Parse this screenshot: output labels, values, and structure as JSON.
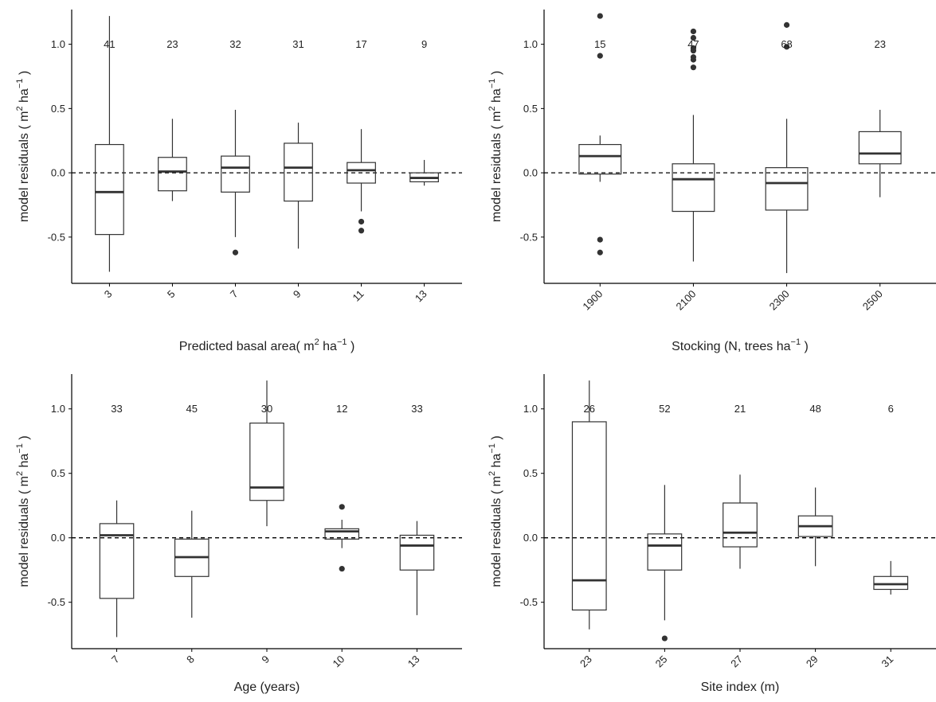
{
  "chart_data": [
    {
      "type": "box",
      "xlabel": "Predicted basal area",
      "xunit": {
        "pre": "( m",
        "sup1": "2",
        "mid": " ha",
        "sup2": "−1",
        "post": " )"
      },
      "ylabel_pre": "model residuals ( m",
      "ylabel_sup1": "2",
      "ylabel_mid": " ha",
      "ylabel_sup2": "−1",
      "ylabel_post": " )",
      "yticks": [
        "-0.5",
        "0.0",
        "0.5",
        "1.0"
      ],
      "ylim": [
        -0.86,
        1.27
      ],
      "categories": [
        "3",
        "5",
        "7",
        "9",
        "11",
        "13"
      ],
      "counts": [
        "41",
        "23",
        "32",
        "31",
        "17",
        "9"
      ],
      "boxes": [
        {
          "q1": -0.48,
          "median": -0.15,
          "q3": 0.22,
          "whisker_low": -0.77,
          "whisker_high": 1.22,
          "outliers": []
        },
        {
          "q1": -0.14,
          "median": 0.01,
          "q3": 0.12,
          "whisker_low": -0.22,
          "whisker_high": 0.42,
          "outliers": []
        },
        {
          "q1": -0.15,
          "median": 0.04,
          "q3": 0.13,
          "whisker_low": -0.5,
          "whisker_high": 0.49,
          "outliers": [
            -0.62
          ]
        },
        {
          "q1": -0.22,
          "median": 0.04,
          "q3": 0.23,
          "whisker_low": -0.59,
          "whisker_high": 0.39,
          "outliers": []
        },
        {
          "q1": -0.08,
          "median": 0.02,
          "q3": 0.08,
          "whisker_low": -0.3,
          "whisker_high": 0.34,
          "outliers": [
            -0.38,
            -0.45
          ]
        },
        {
          "q1": -0.07,
          "median": -0.04,
          "q3": 0.0,
          "whisker_low": -0.1,
          "whisker_high": 0.1,
          "outliers": []
        }
      ],
      "reference_line": 0.0,
      "x_tick_rotation": -45
    },
    {
      "type": "box",
      "xlabel": "Stocking (N, trees ha",
      "xunit": {
        "pre": "",
        "sup1": "",
        "mid": "",
        "sup2": "−1",
        "post": " )"
      },
      "ylabel_pre": "model residuals ( m",
      "ylabel_sup1": "2",
      "ylabel_mid": " ha",
      "ylabel_sup2": "−1",
      "ylabel_post": " )",
      "yticks": [
        "-0.5",
        "0.0",
        "0.5",
        "1.0"
      ],
      "ylim": [
        -0.86,
        1.27
      ],
      "categories": [
        "1900",
        "2100",
        "2300",
        "2500"
      ],
      "counts": [
        "15",
        "47",
        "68",
        "23"
      ],
      "boxes": [
        {
          "q1": -0.01,
          "median": 0.13,
          "q3": 0.22,
          "whisker_low": -0.07,
          "whisker_high": 0.29,
          "outliers": [
            1.22,
            0.91,
            -0.52,
            -0.62
          ]
        },
        {
          "q1": -0.3,
          "median": -0.05,
          "q3": 0.07,
          "whisker_low": -0.69,
          "whisker_high": 0.45,
          "outliers": [
            1.1,
            1.05,
            0.97,
            0.95,
            0.9,
            0.88,
            0.82
          ]
        },
        {
          "q1": -0.29,
          "median": -0.08,
          "q3": 0.04,
          "whisker_low": -0.78,
          "whisker_high": 0.42,
          "outliers": [
            1.15,
            0.98
          ]
        },
        {
          "q1": 0.07,
          "median": 0.15,
          "q3": 0.32,
          "whisker_low": -0.19,
          "whisker_high": 0.49,
          "outliers": []
        }
      ],
      "reference_line": 0.0,
      "x_tick_rotation": -45
    },
    {
      "type": "box",
      "xlabel": "Age (years)",
      "xunit": {
        "pre": "",
        "sup1": "",
        "mid": "",
        "sup2": "",
        "post": ""
      },
      "ylabel_pre": "model residuals ( m",
      "ylabel_sup1": "2",
      "ylabel_mid": " ha",
      "ylabel_sup2": "−1",
      "ylabel_post": " )",
      "yticks": [
        "-0.5",
        "0.0",
        "0.5",
        "1.0"
      ],
      "ylim": [
        -0.86,
        1.27
      ],
      "categories": [
        "7",
        "8",
        "9",
        "10",
        "13"
      ],
      "counts": [
        "33",
        "45",
        "30",
        "12",
        "33"
      ],
      "boxes": [
        {
          "q1": -0.47,
          "median": 0.02,
          "q3": 0.11,
          "whisker_low": -0.77,
          "whisker_high": 0.29,
          "outliers": []
        },
        {
          "q1": -0.3,
          "median": -0.15,
          "q3": -0.01,
          "whisker_low": -0.62,
          "whisker_high": 0.21,
          "outliers": []
        },
        {
          "q1": 0.29,
          "median": 0.39,
          "q3": 0.89,
          "whisker_low": 0.09,
          "whisker_high": 1.22,
          "outliers": []
        },
        {
          "q1": -0.01,
          "median": 0.05,
          "q3": 0.07,
          "whisker_low": -0.08,
          "whisker_high": 0.14,
          "outliers": [
            0.24,
            -0.24
          ]
        },
        {
          "q1": -0.25,
          "median": -0.06,
          "q3": 0.02,
          "whisker_low": -0.6,
          "whisker_high": 0.13,
          "outliers": []
        }
      ],
      "reference_line": 0.0,
      "x_tick_rotation": -45
    },
    {
      "type": "box",
      "xlabel": "Site index (m)",
      "xunit": {
        "pre": "",
        "sup1": "",
        "mid": "",
        "sup2": "",
        "post": ""
      },
      "ylabel_pre": "model residuals ( m",
      "ylabel_sup1": "2",
      "ylabel_mid": " ha",
      "ylabel_sup2": "−1",
      "ylabel_post": " )",
      "yticks": [
        "-0.5",
        "0.0",
        "0.5",
        "1.0"
      ],
      "ylim": [
        -0.86,
        1.27
      ],
      "categories": [
        "23",
        "25",
        "27",
        "29",
        "31"
      ],
      "counts": [
        "26",
        "52",
        "21",
        "48",
        "6"
      ],
      "boxes": [
        {
          "q1": -0.56,
          "median": -0.33,
          "q3": 0.9,
          "whisker_low": -0.71,
          "whisker_high": 1.22,
          "outliers": []
        },
        {
          "q1": -0.25,
          "median": -0.06,
          "q3": 0.03,
          "whisker_low": -0.64,
          "whisker_high": 0.41,
          "outliers": [
            -0.78
          ]
        },
        {
          "q1": -0.07,
          "median": 0.04,
          "q3": 0.27,
          "whisker_low": -0.24,
          "whisker_high": 0.49,
          "outliers": []
        },
        {
          "q1": 0.01,
          "median": 0.09,
          "q3": 0.17,
          "whisker_low": -0.22,
          "whisker_high": 0.39,
          "outliers": []
        },
        {
          "q1": -0.4,
          "median": -0.36,
          "q3": -0.3,
          "whisker_low": -0.44,
          "whisker_high": -0.18,
          "outliers": []
        }
      ],
      "reference_line": 0.0,
      "x_tick_rotation": -45
    }
  ],
  "colors": {
    "box_fill": "#ffffff",
    "stroke": "#333333",
    "axis": "#000000",
    "text": "#222222"
  }
}
